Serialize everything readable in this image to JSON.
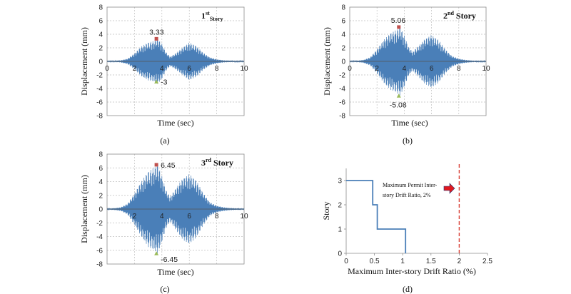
{
  "colors": {
    "signal": "#4a7fb8",
    "max_marker": "#c0504d",
    "min_marker": "#9bbb59",
    "limit_line": "#d9453b",
    "arrow": "#e0191f",
    "grid": "#bfbfbf"
  },
  "chart_data": [
    {
      "id": "a",
      "type": "line",
      "caption": "(a)",
      "title_main": "1",
      "title_sup": "st",
      "title_sub": "Story",
      "xlabel": "Time (sec)",
      "ylabel": "Displacement (mm)",
      "xlim": [
        0,
        10
      ],
      "ylim": [
        -8,
        8
      ],
      "xticks": [
        0,
        2,
        4,
        6,
        8,
        10
      ],
      "yticks": [
        -8,
        -6,
        -4,
        -2,
        0,
        2,
        4,
        6,
        8
      ],
      "grid": true,
      "envelope": {
        "x": [
          0,
          0.5,
          1.0,
          1.5,
          2.0,
          2.5,
          3.0,
          3.4,
          3.7,
          4.0,
          4.3,
          4.6,
          5.0,
          5.5,
          6.0,
          6.5,
          7.0,
          7.5,
          8.0,
          8.5,
          9.0,
          10.0
        ],
        "y": [
          0.05,
          0.08,
          0.15,
          0.4,
          1.2,
          2.2,
          2.8,
          3.0,
          3.33,
          2.6,
          1.4,
          0.7,
          1.2,
          2.0,
          2.8,
          2.3,
          1.3,
          0.6,
          0.3,
          0.15,
          0.1,
          0.06
        ]
      },
      "peak_max": {
        "x": 3.6,
        "y": 3.33,
        "label": "3.33"
      },
      "peak_min": {
        "x": 3.6,
        "y": -3,
        "label": "-3"
      }
    },
    {
      "id": "b",
      "type": "line",
      "caption": "(b)",
      "title_main": "2",
      "title_sup": "nd",
      "title_rest": "Story",
      "xlabel": "Time (sec)",
      "ylabel": "Displacement (mm)",
      "xlim": [
        0,
        10
      ],
      "ylim": [
        -8,
        8
      ],
      "xticks": [
        0,
        2,
        4,
        6,
        8,
        10
      ],
      "yticks": [
        -8,
        -6,
        -4,
        -2,
        0,
        2,
        4,
        6,
        8
      ],
      "grid": true,
      "envelope": {
        "x": [
          0,
          0.5,
          1.0,
          1.5,
          2.0,
          2.5,
          3.0,
          3.4,
          3.7,
          4.0,
          4.3,
          4.6,
          5.0,
          5.5,
          6.0,
          6.5,
          7.0,
          7.5,
          8.0,
          8.5,
          9.0,
          10.0
        ],
        "y": [
          0.05,
          0.1,
          0.2,
          0.6,
          1.8,
          3.2,
          4.2,
          4.6,
          5.06,
          3.8,
          2.2,
          1.4,
          2.2,
          3.3,
          3.9,
          3.2,
          1.8,
          0.8,
          0.4,
          0.2,
          0.12,
          0.06
        ]
      },
      "peak_max": {
        "x": 3.6,
        "y": 5.06,
        "label": "5.06"
      },
      "peak_min": {
        "x": 3.6,
        "y": -5.08,
        "label": "-5.08"
      }
    },
    {
      "id": "c",
      "type": "line",
      "caption": "(c)",
      "title_main": "3",
      "title_sup": "rd",
      "title_rest": "Story",
      "xlabel": "Time (sec)",
      "ylabel": "Displacement (mm)",
      "xlim": [
        0,
        10
      ],
      "ylim": [
        -8,
        8
      ],
      "xticks": [
        2,
        4,
        6,
        8,
        10
      ],
      "yticks": [
        -8,
        -6,
        -4,
        -2,
        0,
        2,
        4,
        6,
        8
      ],
      "grid": true,
      "envelope": {
        "x": [
          0,
          0.5,
          1.0,
          1.5,
          2.0,
          2.5,
          3.0,
          3.4,
          3.7,
          4.0,
          4.3,
          4.6,
          5.0,
          5.5,
          6.0,
          6.5,
          7.0,
          7.5,
          8.0,
          8.5,
          9.0,
          10.0
        ],
        "y": [
          0.06,
          0.12,
          0.25,
          0.8,
          2.3,
          4.0,
          5.5,
          6.0,
          6.45,
          4.8,
          2.8,
          1.8,
          3.0,
          4.4,
          5.1,
          4.2,
          2.4,
          1.0,
          0.5,
          0.25,
          0.15,
          0.08
        ]
      },
      "peak_max": {
        "x": 3.6,
        "y": 6.45,
        "label": "6.45"
      },
      "peak_min": {
        "x": 3.6,
        "y": -6.45,
        "label": "-6.45"
      }
    },
    {
      "id": "d",
      "type": "line",
      "caption": "(d)",
      "xlabel": "Maximum Inter-story Drift Ratio (%)",
      "ylabel": "Story",
      "xlim": [
        0,
        2.5
      ],
      "ylim": [
        0,
        3.5
      ],
      "xticks": [
        0,
        0.5,
        1,
        1.5,
        2,
        2.5
      ],
      "xticklabels": [
        "0",
        "0.5",
        "1",
        "1.5",
        "2",
        "2.5"
      ],
      "yticks": [
        0,
        1,
        2,
        3
      ],
      "grid": false,
      "profile": {
        "x": [
          0,
          0.47,
          0.47,
          0.55,
          0.55,
          1.05,
          1.05
        ],
        "y": [
          3,
          3,
          2,
          2,
          1,
          1,
          0
        ]
      },
      "limit_x": 2,
      "note_lines": [
        "Maximum Permit Inter-",
        "story Drift Ratio, 2%"
      ]
    }
  ]
}
